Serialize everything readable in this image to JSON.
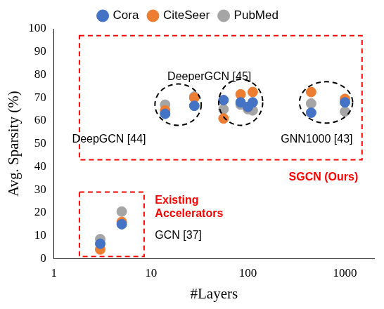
{
  "chart_data": {
    "type": "scatter",
    "x_label": "#Layers",
    "y_label": "Avg. Sparsity (%)",
    "log": "x",
    "grid": false,
    "legend": "top",
    "xlim": [
      1,
      2000
    ],
    "xticks": [
      1,
      10,
      100,
      1000
    ],
    "ylim": [
      0,
      100
    ],
    "yticks": [
      0,
      10,
      20,
      30,
      40,
      50,
      60,
      70,
      80,
      90,
      100
    ],
    "x": [
      3,
      5,
      14,
      28,
      56,
      84,
      100,
      112,
      448,
      1000
    ],
    "series": [
      {
        "name": "Cora",
        "color": "#4472c4",
        "marker": "circle",
        "values": [
          6.5,
          15,
          63,
          66.5,
          69,
          68,
          66,
          68,
          63.5,
          68
        ]
      },
      {
        "name": "CiteSeer",
        "color": "#ed7d31",
        "marker": "circle",
        "values": [
          4,
          16,
          64.5,
          70,
          61,
          71.5,
          66,
          72.5,
          72.5,
          69.5
        ]
      },
      {
        "name": "PubMed",
        "color": "#a5a5a5",
        "marker": "circle",
        "values": [
          8.5,
          20.5,
          67,
          70.5,
          65,
          67,
          65,
          64.5,
          67.5,
          64
        ]
      }
    ],
    "annotations": [
      {
        "text": [
          "DeeperGCN [45]"
        ],
        "color": "#000000"
      },
      {
        "text": [
          "DeepGCN [44]"
        ],
        "color": "#000000"
      },
      {
        "text": [
          "GNN1000 [43]"
        ],
        "color": "#000000"
      },
      {
        "text": [
          "SGCN (Ours)"
        ],
        "color": "#ff0000"
      },
      {
        "text": [
          "Existing",
          "Accelerators"
        ],
        "color": "#ff0000"
      },
      {
        "text": [
          "GCN [37]"
        ],
        "color": "#000000"
      }
    ]
  }
}
